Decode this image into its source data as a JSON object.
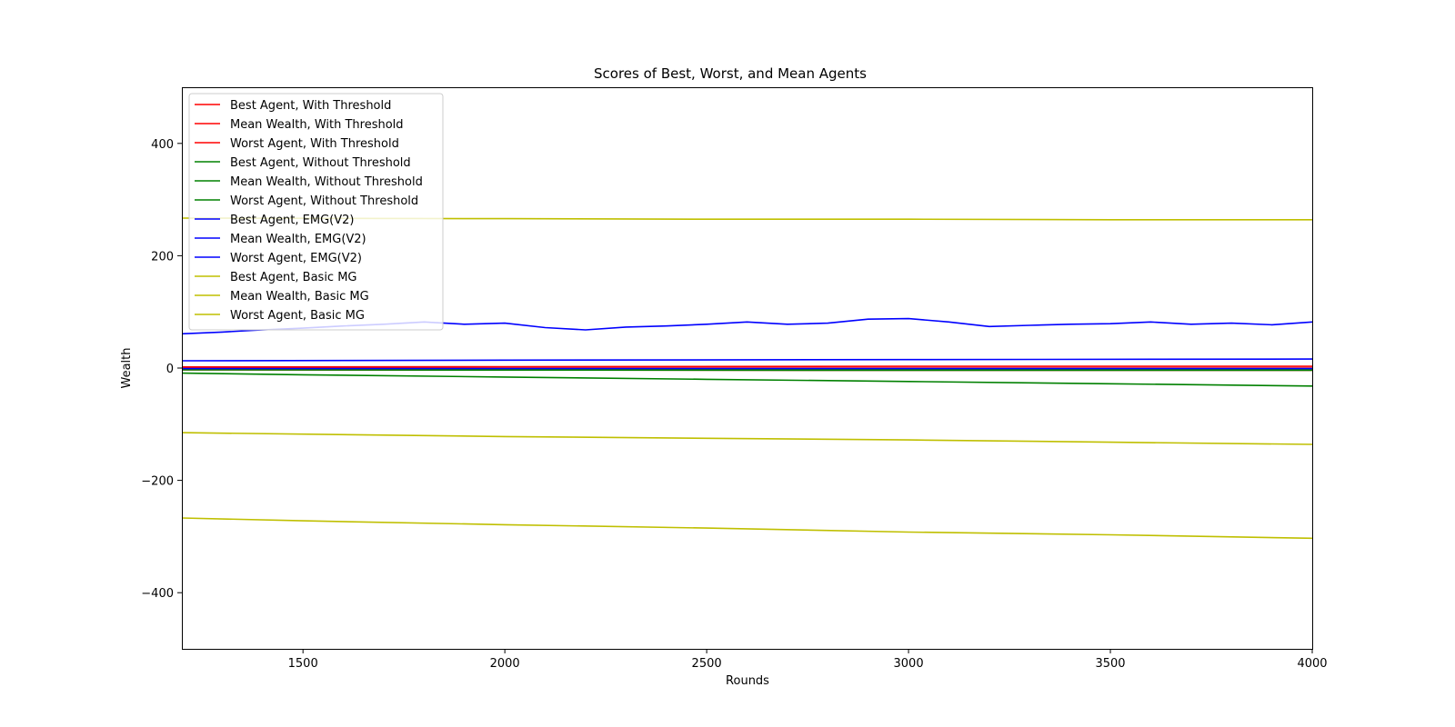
{
  "chart_data": {
    "type": "line",
    "title": "Scores of Best, Worst, and Mean Agents",
    "xlabel": "Rounds",
    "ylabel": "Wealth",
    "xlim": [
      1200,
      4000
    ],
    "ylim": [
      -500,
      500
    ],
    "xticks": [
      1500,
      2000,
      2500,
      3000,
      3500,
      4000
    ],
    "xtick_labels": [
      "1500",
      "2000",
      "2500",
      "3000",
      "3500",
      "4000"
    ],
    "yticks": [
      -400,
      -200,
      0,
      200,
      400
    ],
    "ytick_labels": [
      "−400",
      "−200",
      "0",
      "200",
      "400"
    ],
    "grid": false,
    "legend_position": "upper-left",
    "series": [
      {
        "name": "Best Agent, With Threshold",
        "color": "#ff0000",
        "x": [
          1200,
          2000,
          3000,
          4000
        ],
        "y": [
          2,
          2.5,
          3,
          3
        ]
      },
      {
        "name": "Mean Wealth, With Threshold",
        "color": "#ff0000",
        "x": [
          1200,
          2000,
          3000,
          4000
        ],
        "y": [
          0,
          0,
          0,
          0
        ]
      },
      {
        "name": "Worst Agent, With Threshold",
        "color": "#ff0000",
        "x": [
          1200,
          2000,
          3000,
          4000
        ],
        "y": [
          -3,
          -3.5,
          -4,
          -4
        ]
      },
      {
        "name": "Best Agent, Without Threshold",
        "color": "#008000",
        "x": [
          1200,
          2000,
          3000,
          4000
        ],
        "y": [
          -2,
          -2.5,
          -2.5,
          -3
        ]
      },
      {
        "name": "Mean Wealth, Without Threshold",
        "color": "#008000",
        "x": [
          1200,
          2000,
          3000,
          4000
        ],
        "y": [
          -3,
          -3.5,
          -4,
          -4
        ]
      },
      {
        "name": "Worst Agent, Without Threshold",
        "color": "#008000",
        "x": [
          1200,
          1500,
          2000,
          2500,
          3000,
          3500,
          4000
        ],
        "y": [
          -9,
          -12,
          -16,
          -20,
          -24,
          -28,
          -32
        ]
      },
      {
        "name": "Best Agent, EMG(V2)",
        "color": "#0000ff",
        "x": [
          1200,
          1300,
          1400,
          1500,
          1600,
          1700,
          1800,
          1900,
          2000,
          2100,
          2200,
          2300,
          2400,
          2500,
          2600,
          2700,
          2800,
          2900,
          3000,
          3100,
          3200,
          3300,
          3400,
          3500,
          3600,
          3700,
          3800,
          3900,
          4000
        ],
        "y": [
          61,
          64,
          68,
          71,
          75,
          78,
          82,
          78,
          80,
          72,
          68,
          73,
          75,
          78,
          82,
          78,
          80,
          87,
          88,
          82,
          74,
          76,
          78,
          79,
          82,
          78,
          80,
          77,
          82
        ]
      },
      {
        "name": "Mean Wealth, EMG(V2)",
        "color": "#0000ff",
        "x": [
          1200,
          2000,
          3000,
          4000
        ],
        "y": [
          -1,
          -1,
          -1,
          -1
        ]
      },
      {
        "name": "Worst Agent, EMG(V2)",
        "color": "#0000ff",
        "x": [
          1200,
          2000,
          3000,
          4000
        ],
        "y": [
          13,
          14,
          15,
          16
        ]
      },
      {
        "name": "Best Agent, Basic MG",
        "color": "#bfbf00",
        "x": [
          1200,
          2000,
          2500,
          3000,
          3500,
          4000
        ],
        "y": [
          267,
          266,
          265,
          265,
          264,
          264
        ]
      },
      {
        "name": "Mean Wealth, Basic MG",
        "color": "#bfbf00",
        "x": [
          1200,
          2000,
          2500,
          3000,
          3500,
          4000
        ],
        "y": [
          -115,
          -122,
          -125,
          -128,
          -132,
          -136
        ]
      },
      {
        "name": "Worst Agent, Basic MG",
        "color": "#bfbf00",
        "x": [
          1200,
          1500,
          2000,
          2500,
          3000,
          3500,
          4000
        ],
        "y": [
          -267,
          -272,
          -279,
          -285,
          -292,
          -297,
          -303
        ]
      }
    ]
  }
}
